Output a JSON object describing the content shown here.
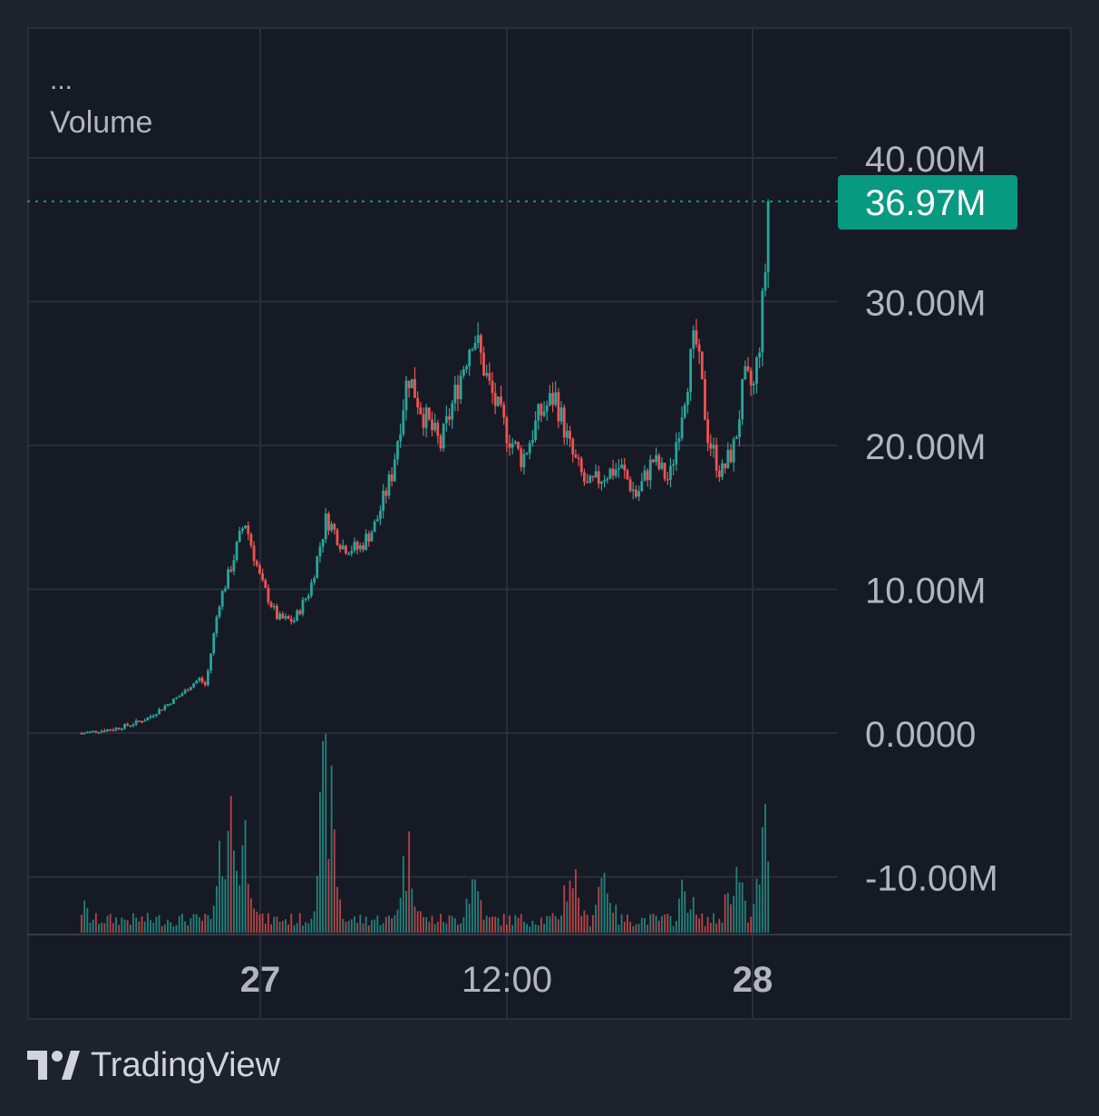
{
  "legend": {
    "menu_label": "...",
    "series_label": "Volume"
  },
  "branding": {
    "name": "TradingView",
    "logo_icon": "tradingview-logo-icon"
  },
  "colors": {
    "background": "#1e222d",
    "pane": "#161a25",
    "grid": "#2a2e39",
    "text": "#b2b5be",
    "up": "#26a69a",
    "down": "#ef5350",
    "last_value_badge": "#089981"
  },
  "chart_data": {
    "type": "candlestick",
    "series": [
      {
        "name": "Volume",
        "role": "price",
        "points": [
          {
            "t": 0.0,
            "v": 0.0
          },
          {
            "t": 0.1,
            "v": 0.3
          },
          {
            "t": 0.15,
            "v": 0.6
          },
          {
            "t": 0.2,
            "v": 1.0
          },
          {
            "t": 0.25,
            "v": 1.8
          },
          {
            "t": 0.3,
            "v": 2.6
          },
          {
            "t": 0.36,
            "v": 3.8
          },
          {
            "t": 0.38,
            "v": 3.3
          },
          {
            "t": 0.42,
            "v": 9.0
          },
          {
            "t": 0.45,
            "v": 11.0
          },
          {
            "t": 0.5,
            "v": 14.8
          },
          {
            "t": 0.55,
            "v": 10.5
          },
          {
            "t": 0.6,
            "v": 8.0
          },
          {
            "t": 0.65,
            "v": 7.8
          },
          {
            "t": 0.7,
            "v": 10.0
          },
          {
            "t": 0.75,
            "v": 15.0
          },
          {
            "t": 0.8,
            "v": 13.0
          },
          {
            "t": 0.85,
            "v": 12.8
          },
          {
            "t": 0.9,
            "v": 14.5
          },
          {
            "t": 0.95,
            "v": 18.0
          },
          {
            "t": 1.0,
            "v": 25.0
          },
          {
            "t": 1.05,
            "v": 22.0
          },
          {
            "t": 1.1,
            "v": 20.0
          },
          {
            "t": 1.15,
            "v": 24.0
          },
          {
            "t": 1.2,
            "v": 28.0
          },
          {
            "t": 1.25,
            "v": 24.0
          },
          {
            "t": 1.3,
            "v": 21.0
          },
          {
            "t": 1.35,
            "v": 19.0
          },
          {
            "t": 1.4,
            "v": 22.0
          },
          {
            "t": 1.45,
            "v": 23.5
          },
          {
            "t": 1.5,
            "v": 19.5
          },
          {
            "t": 1.55,
            "v": 17.0
          },
          {
            "t": 1.6,
            "v": 18.0
          },
          {
            "t": 1.65,
            "v": 18.5
          },
          {
            "t": 1.7,
            "v": 16.5
          },
          {
            "t": 1.75,
            "v": 19.0
          },
          {
            "t": 1.8,
            "v": 17.5
          },
          {
            "t": 1.85,
            "v": 24.0
          },
          {
            "t": 1.88,
            "v": 27.5
          },
          {
            "t": 1.92,
            "v": 20.5
          },
          {
            "t": 1.96,
            "v": 18.0
          },
          {
            "t": 2.0,
            "v": 20.0
          },
          {
            "t": 2.03,
            "v": 24.5
          },
          {
            "t": 2.06,
            "v": 24.0
          },
          {
            "t": 2.08,
            "v": 28.0
          },
          {
            "t": 2.09,
            "v": 31.0
          },
          {
            "t": 2.1,
            "v": 34.0
          },
          {
            "t": 2.11,
            "v": 36.97
          }
        ]
      },
      {
        "name": "Volume",
        "role": "volume",
        "peaks": [
          {
            "t": 0.0,
            "v": 0.15
          },
          {
            "t": 0.45,
            "v": 0.7
          },
          {
            "t": 0.5,
            "v": 0.55
          },
          {
            "t": 0.75,
            "v": 0.85
          },
          {
            "t": 1.0,
            "v": 0.45
          },
          {
            "t": 1.2,
            "v": 0.3
          },
          {
            "t": 1.5,
            "v": 0.35
          },
          {
            "t": 1.6,
            "v": 0.35
          },
          {
            "t": 1.85,
            "v": 0.25
          },
          {
            "t": 2.0,
            "v": 0.35
          },
          {
            "t": 2.1,
            "v": 0.6
          }
        ]
      }
    ],
    "x_ticks": [
      "27",
      "12:00",
      "28"
    ],
    "y_ticks": [
      "40.00M",
      "30.00M",
      "20.00M",
      "10.00M",
      "0.0000",
      "-10.00M"
    ],
    "y_tick_values": [
      40,
      30,
      20,
      10,
      0,
      -10
    ],
    "y_unit": "M",
    "last_value": 36.97,
    "last_value_label": "36.97M",
    "grid": true,
    "legend": "top-left"
  }
}
